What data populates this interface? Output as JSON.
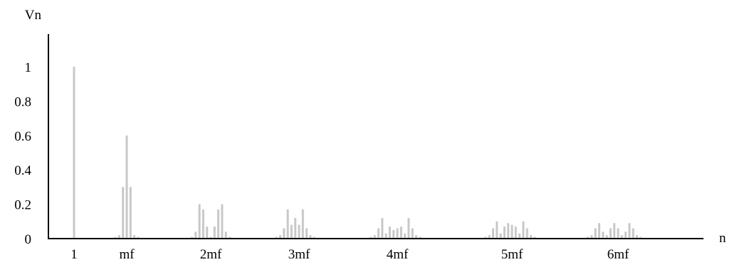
{
  "chart_data": {
    "type": "bar",
    "ylabel": "Vn",
    "xlabel": "n",
    "ylim": [
      0,
      1.2
    ],
    "yticks": [
      "0",
      "0.2",
      "0.4",
      "0.6",
      "0.8",
      "1"
    ],
    "ytick_values": [
      0,
      0.2,
      0.4,
      0.6,
      0.8,
      1
    ],
    "xticks": [
      "1",
      "mf",
      "2mf",
      "3mf",
      "4mf",
      "5mf",
      "6mf"
    ],
    "bar_color": "#c8c8c8",
    "groups": [
      {
        "label": "1",
        "offsets": [
          0
        ],
        "values": [
          1.0
        ]
      },
      {
        "label": "mf",
        "offsets": [
          -3,
          -2,
          -1,
          0,
          1,
          2,
          3
        ],
        "values": [
          0.01,
          0.02,
          0.3,
          0.6,
          0.3,
          0.02,
          0.01
        ]
      },
      {
        "label": "2mf",
        "offsets": [
          -5,
          -4,
          -3,
          -2,
          -1,
          0,
          1,
          2,
          3,
          4,
          5
        ],
        "values": [
          0.01,
          0.04,
          0.2,
          0.17,
          0.07,
          0.01,
          0.07,
          0.17,
          0.2,
          0.04,
          0.01
        ]
      },
      {
        "label": "3mf",
        "offsets": [
          -6,
          -5,
          -4,
          -3,
          -2,
          -1,
          0,
          1,
          2,
          3,
          4,
          5,
          6
        ],
        "values": [
          0.01,
          0.02,
          0.06,
          0.17,
          0.08,
          0.12,
          0.08,
          0.17,
          0.06,
          0.02,
          0.01,
          0.0,
          0.0
        ]
      },
      {
        "label": "4mf",
        "offsets": [
          -7,
          -6,
          -5,
          -4,
          -3,
          -2,
          -1,
          0,
          1,
          2,
          3,
          4,
          5,
          6,
          7
        ],
        "values": [
          0.01,
          0.02,
          0.06,
          0.12,
          0.03,
          0.07,
          0.05,
          0.06,
          0.07,
          0.03,
          0.12,
          0.06,
          0.02,
          0.01,
          0.0
        ]
      },
      {
        "label": "5mf",
        "offsets": [
          -8,
          -7,
          -6,
          -5,
          -4,
          -3,
          -2,
          -1,
          0,
          1,
          2,
          3,
          4,
          5,
          6,
          7,
          8
        ],
        "values": [
          0.0,
          0.01,
          0.02,
          0.06,
          0.1,
          0.03,
          0.07,
          0.09,
          0.08,
          0.07,
          0.03,
          0.1,
          0.06,
          0.02,
          0.01,
          0.0,
          0.0
        ]
      },
      {
        "label": "6mf",
        "offsets": [
          -9,
          -8,
          -7,
          -6,
          -5,
          -4,
          -3,
          -2,
          -1,
          0,
          1,
          2,
          3,
          4,
          5,
          6,
          7,
          8,
          9
        ],
        "values": [
          0.0,
          0.01,
          0.02,
          0.06,
          0.09,
          0.04,
          0.02,
          0.06,
          0.09,
          0.06,
          0.02,
          0.04,
          0.09,
          0.06,
          0.02,
          0.01,
          0.0,
          0.0,
          0.0
        ]
      }
    ]
  }
}
